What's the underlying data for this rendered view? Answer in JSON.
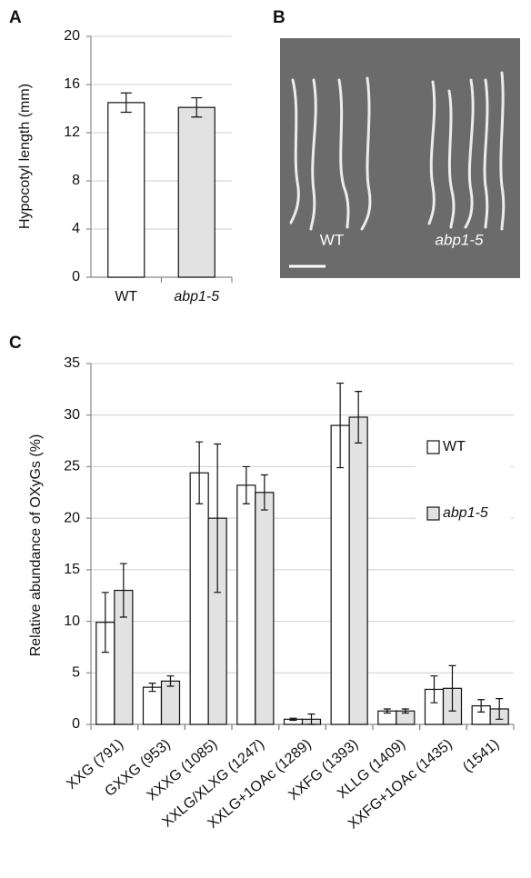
{
  "chart_data": [
    {
      "type": "bar",
      "panel": "A",
      "y_label": "Hypocotyl length (mm)",
      "categories": [
        "WT",
        "abp1-5"
      ],
      "italic_categories": [
        1
      ],
      "values": [
        14.5,
        14.1
      ],
      "errors": [
        0.8,
        0.8
      ],
      "colors": [
        "#ffffff",
        "#e2e2e2"
      ],
      "ylim": [
        0,
        20
      ],
      "yticks": [
        0,
        4,
        8,
        12,
        16,
        20
      ],
      "grid": true
    },
    {
      "type": "image",
      "panel": "B",
      "labels": [
        "WT",
        "abp1-5"
      ]
    },
    {
      "type": "grouped-bar",
      "panel": "C",
      "y_label": "Relative abundance of OXyGs (%)",
      "categories": [
        "XXG (791)",
        "GXXG (953)",
        "XXXG (1085)",
        "XXLG/XLXG (1247)",
        "XXLG+1OAc (1289)",
        "XXFG (1393)",
        "XLLG (1409)",
        "XXFG+1OAc (1435)",
        "(1541)"
      ],
      "series": [
        {
          "name": "WT",
          "color": "#ffffff",
          "italic": false,
          "values": [
            9.9,
            3.6,
            24.4,
            23.2,
            0.5,
            29.0,
            1.3,
            3.4,
            1.8
          ],
          "errors": [
            2.9,
            0.4,
            3.0,
            1.8,
            0.1,
            4.1,
            0.2,
            1.3,
            0.6
          ]
        },
        {
          "name": "abp1-5",
          "color": "#e2e2e2",
          "italic": true,
          "values": [
            13.0,
            4.2,
            20.0,
            22.5,
            0.5,
            29.8,
            1.3,
            3.5,
            1.5
          ],
          "errors": [
            2.6,
            0.5,
            7.2,
            1.7,
            0.5,
            2.5,
            0.2,
            2.2,
            1.0
          ]
        }
      ],
      "ylim": [
        0,
        35
      ],
      "yticks": [
        0,
        5,
        10,
        15,
        20,
        25,
        30,
        35
      ],
      "grid": true
    }
  ]
}
